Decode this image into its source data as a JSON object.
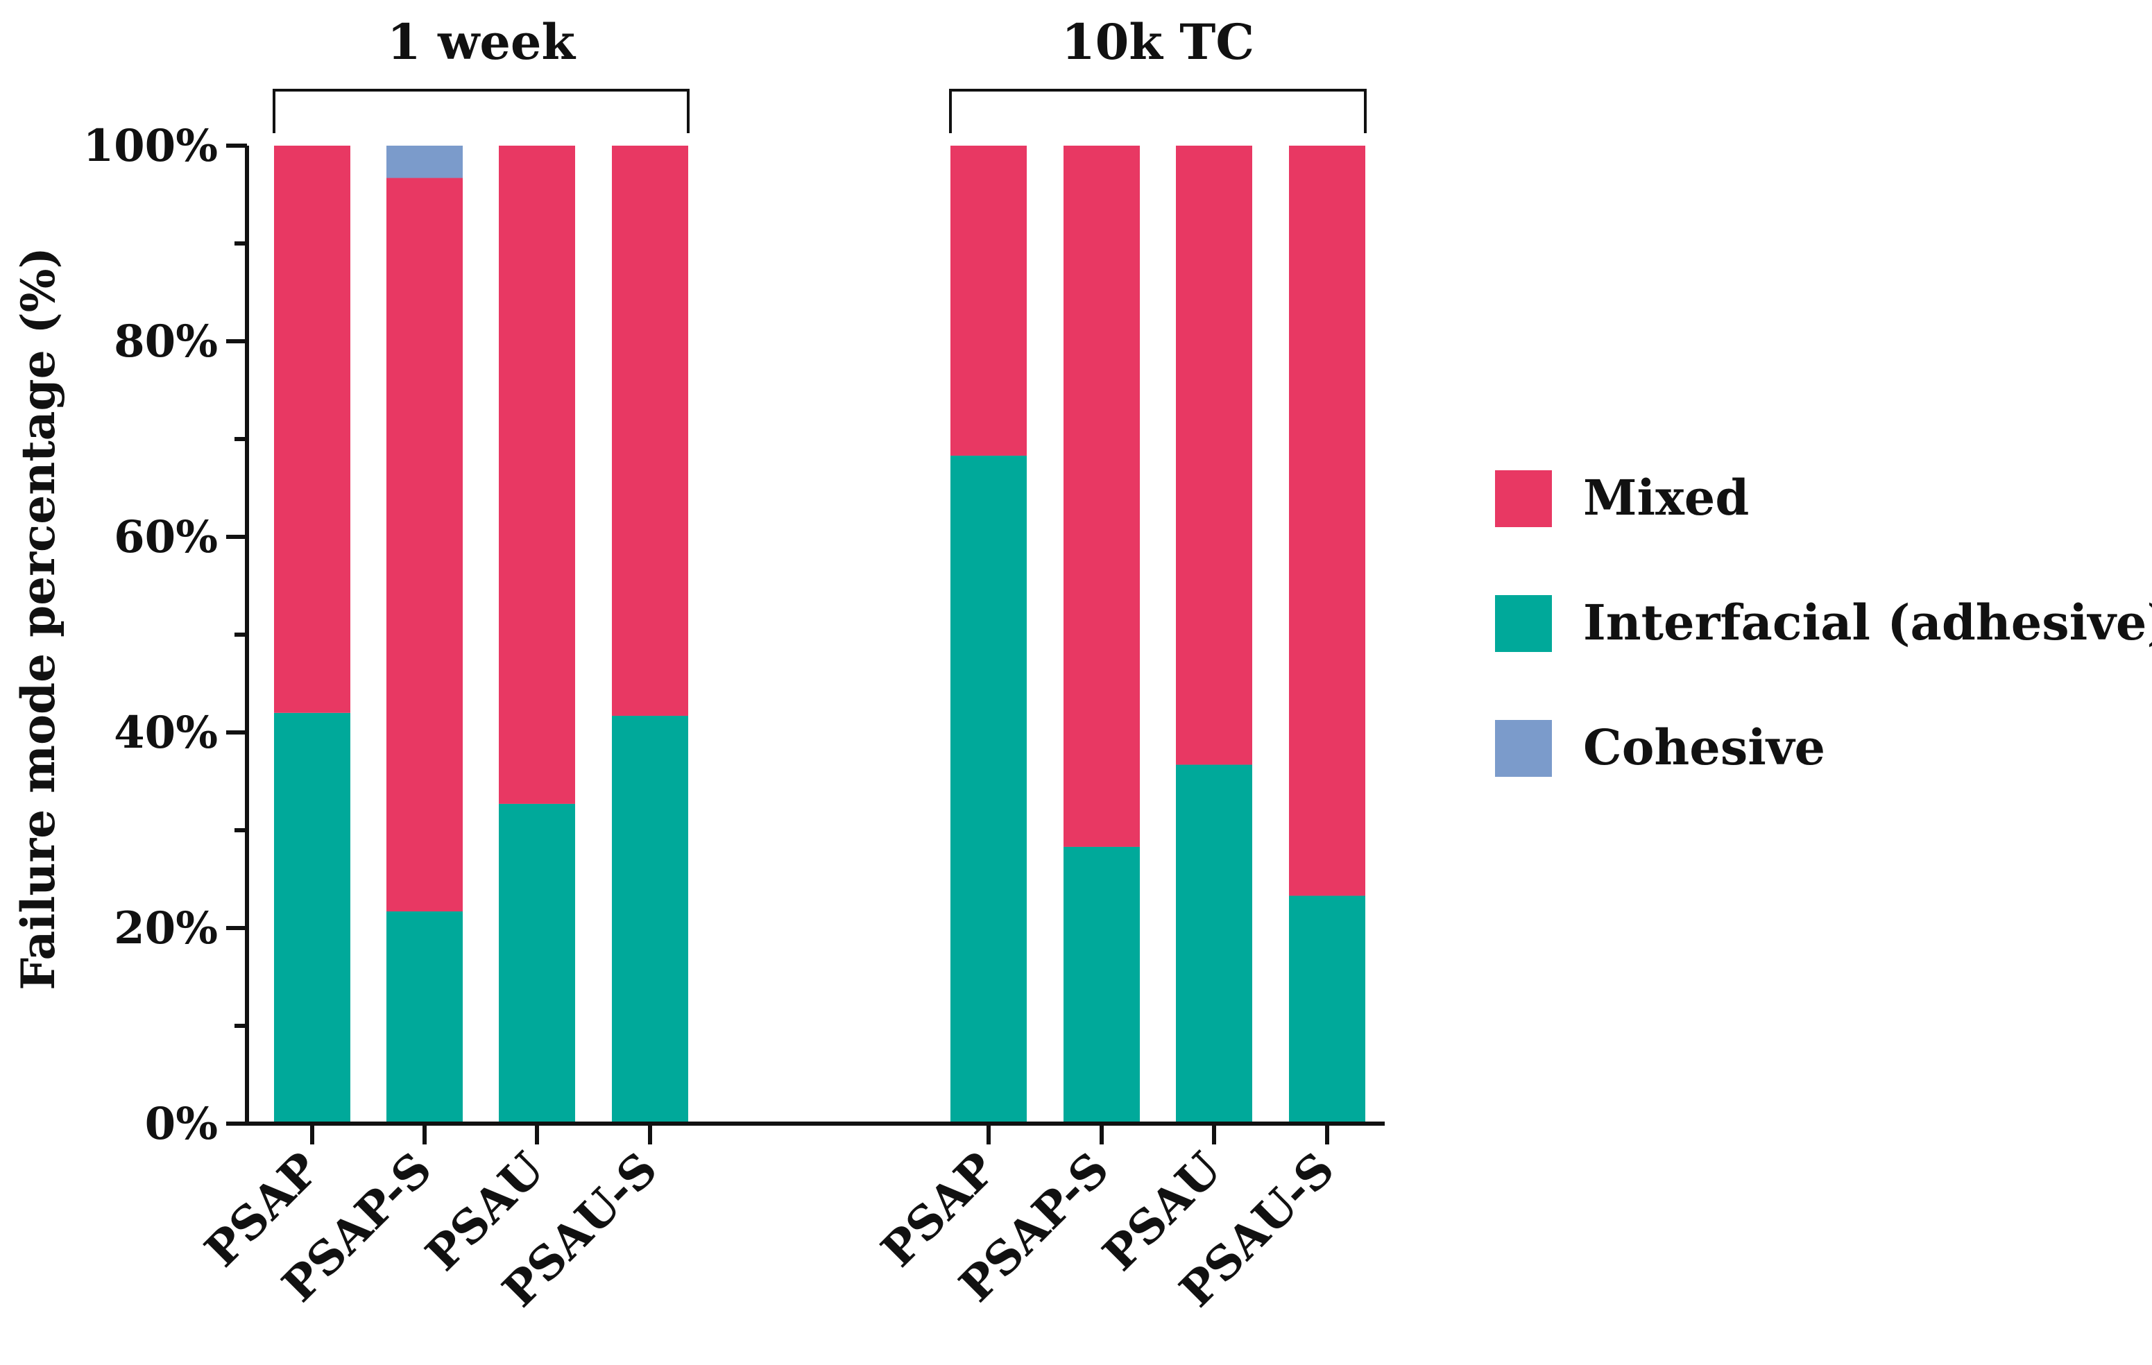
{
  "chart_data": {
    "type": "bar",
    "stacked": true,
    "groups": [
      {
        "label": "1 week",
        "categories": [
          "PSAP",
          "PSAP-S",
          "PSAU",
          "PSAU-S"
        ]
      },
      {
        "label": "10k TC",
        "categories": [
          "PSAP",
          "PSAP-S",
          "PSAU",
          "PSAU-S"
        ]
      }
    ],
    "categories": [
      "PSAP",
      "PSAP-S",
      "PSAU",
      "PSAU-S",
      "PSAP",
      "PSAP-S",
      "PSAU",
      "PSAU-S"
    ],
    "series": [
      {
        "name": "Interfacial (adhesive)",
        "color": "#00A99A",
        "values": [
          42,
          21.7,
          32.7,
          41.7,
          68.3,
          28.3,
          36.7,
          23.3
        ]
      },
      {
        "name": "Mixed",
        "color": "#E83863",
        "values": [
          58,
          75,
          67.3,
          58.3,
          31.7,
          71.7,
          63.3,
          76.7
        ]
      },
      {
        "name": "Cohesive",
        "color": "#7B9BCB",
        "values": [
          0,
          3.3,
          0,
          0,
          0,
          0,
          0,
          0
        ]
      }
    ],
    "legend": [
      {
        "name": "Mixed",
        "color": "#E83863"
      },
      {
        "name": "Interfacial (adhesive)",
        "color": "#00A99A"
      },
      {
        "name": "Cohesive",
        "color": "#7B9BCB"
      }
    ],
    "ylabel": "Failure mode percentage (%)",
    "xlabel": "",
    "ylim": [
      0,
      100
    ],
    "yticks": [
      "0%",
      "20%",
      "40%",
      "60%",
      "80%",
      "100%"
    ],
    "legend_position": "right"
  }
}
